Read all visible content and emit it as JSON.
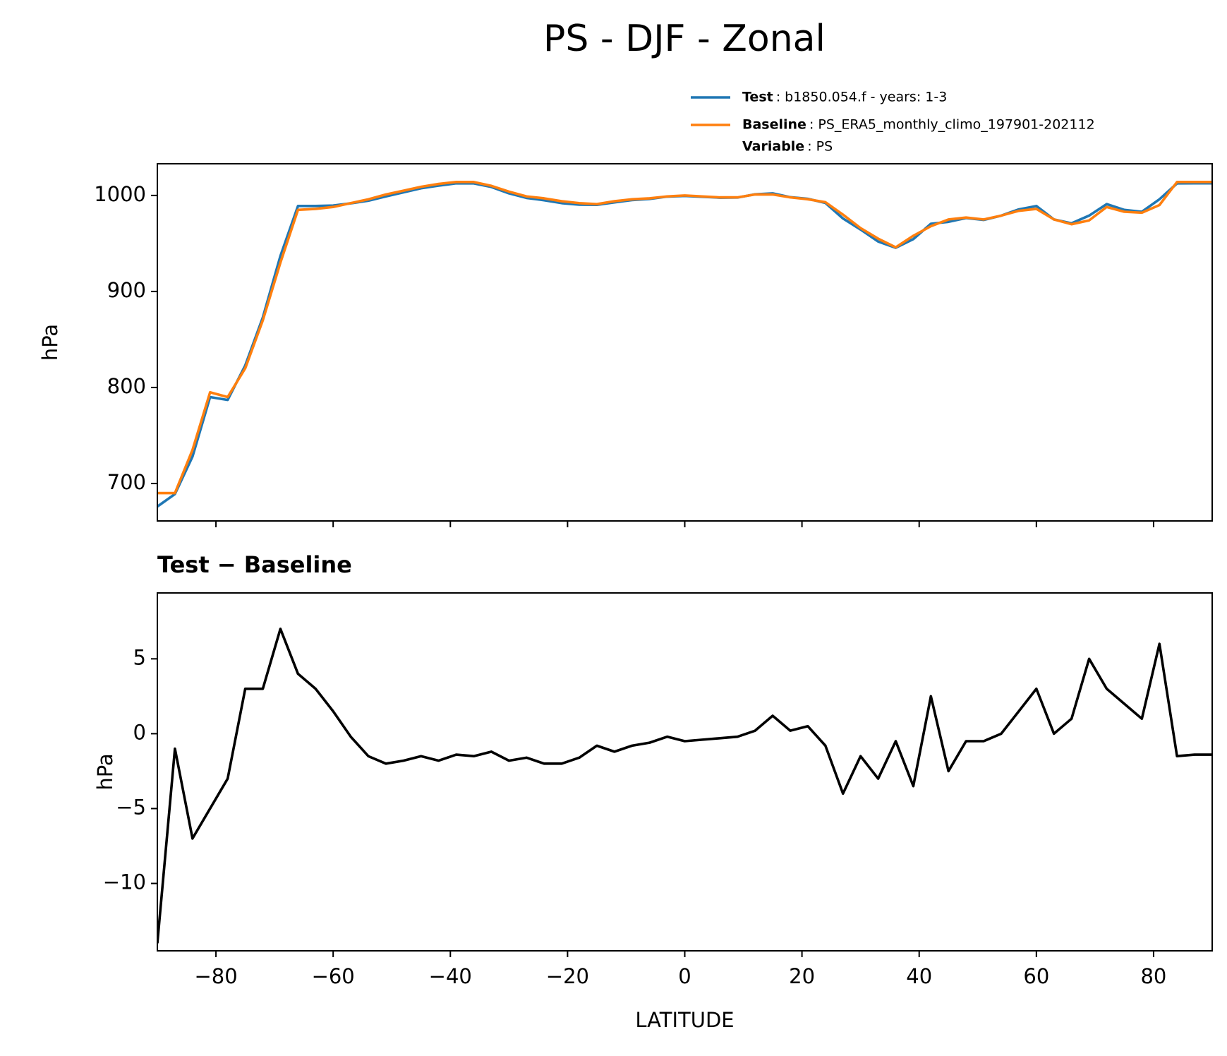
{
  "title": "PS - DJF - Zonal",
  "chart_data": [
    {
      "type": "line",
      "x": [
        -90,
        -87,
        -84,
        -81,
        -78,
        -75,
        -72,
        -69,
        -66,
        -63,
        -60,
        -57,
        -54,
        -51,
        -48,
        -45,
        -42,
        -39,
        -36,
        -33,
        -30,
        -27,
        -24,
        -21,
        -18,
        -15,
        -12,
        -9,
        -6,
        -3,
        0,
        3,
        6,
        9,
        12,
        15,
        18,
        21,
        24,
        27,
        30,
        33,
        36,
        39,
        42,
        45,
        48,
        51,
        54,
        57,
        60,
        63,
        66,
        69,
        72,
        75,
        78,
        81,
        84,
        87,
        90
      ],
      "series": [
        {
          "name": "Test",
          "description": ": b1850.054.f - years: 1-3",
          "color": "#1f77b4",
          "values": [
            676,
            689,
            728,
            790,
            787,
            823,
            873,
            937,
            989,
            989,
            989.5,
            991.8,
            994.5,
            999,
            1003.2,
            1007.5,
            1010.2,
            1012.6,
            1012.5,
            1008.8,
            1002.2,
            997.4,
            995,
            992,
            990.4,
            990.2,
            992.8,
            995.2,
            996.4,
            998.8,
            999.5,
            998.6,
            997.7,
            997.8,
            1001.2,
            1002.2,
            998.2,
            996.5,
            992.2,
            976,
            964.5,
            952,
            945.5,
            954.5,
            970.5,
            972.5,
            976.5,
            974.5,
            979,
            985.5,
            989,
            975,
            971,
            979,
            991,
            985,
            983,
            996,
            1012.5,
            1012.6,
            1012.6
          ]
        },
        {
          "name": "Baseline",
          "description": ": PS_ERA5_monthly_climo_197901-202112",
          "color": "#ff7f0e",
          "values": [
            690,
            690,
            735,
            795,
            790,
            820,
            870,
            930,
            985,
            986,
            988,
            992,
            996,
            1001,
            1005,
            1009,
            1012,
            1014,
            1014,
            1010,
            1004,
            999,
            997,
            994,
            992,
            991,
            994,
            996,
            997,
            999,
            1000,
            999,
            998,
            998,
            1001,
            1001,
            998,
            996,
            993,
            980,
            966,
            955,
            946,
            958,
            968,
            975,
            977,
            975,
            979,
            984,
            986,
            975,
            970,
            974,
            988,
            983,
            982,
            990,
            1014,
            1014,
            1014
          ]
        }
      ],
      "legend_extra": {
        "name": "Variable",
        "description": ": PS"
      },
      "ylabel": "hPa",
      "xlim": [
        -90,
        90
      ],
      "xticks": [
        -80,
        -60,
        -40,
        -20,
        0,
        20,
        40,
        60,
        80
      ],
      "xticklabels": false,
      "ylim": [
        661,
        1033
      ],
      "yticks": [
        700,
        800,
        900,
        1000
      ]
    },
    {
      "type": "line",
      "title": "Test − Baseline",
      "x": [
        -90,
        -87,
        -84,
        -81,
        -78,
        -75,
        -72,
        -69,
        -66,
        -63,
        -60,
        -57,
        -54,
        -51,
        -48,
        -45,
        -42,
        -39,
        -36,
        -33,
        -30,
        -27,
        -24,
        -21,
        -18,
        -15,
        -12,
        -9,
        -6,
        -3,
        0,
        3,
        6,
        9,
        12,
        15,
        18,
        21,
        24,
        27,
        30,
        33,
        36,
        39,
        42,
        45,
        48,
        51,
        54,
        57,
        60,
        63,
        66,
        69,
        72,
        75,
        78,
        81,
        84,
        87,
        90
      ],
      "series": [
        {
          "color": "#000000",
          "values": [
            -14,
            -1,
            -7,
            -5,
            -3,
            3,
            3,
            7,
            4,
            3,
            1.5,
            -0.2,
            -1.5,
            -2,
            -1.8,
            -1.5,
            -1.8,
            -1.4,
            -1.5,
            -1.2,
            -1.8,
            -1.6,
            -2,
            -2,
            -1.6,
            -0.8,
            -1.2,
            -0.8,
            -0.6,
            -0.2,
            -0.5,
            -0.4,
            -0.3,
            -0.2,
            0.2,
            1.2,
            0.2,
            0.5,
            -0.8,
            -4,
            -1.5,
            -3,
            -0.5,
            -3.5,
            2.5,
            -2.5,
            -0.5,
            -0.5,
            0,
            1.5,
            3,
            0,
            1,
            5,
            3,
            2,
            1,
            6,
            -1.5,
            -1.4,
            -1.4
          ]
        }
      ],
      "ylabel": "hPa",
      "xlabel": "LATITUDE",
      "xlim": [
        -90,
        90
      ],
      "xticks": [
        {
          "value": -80,
          "label": "−80"
        },
        {
          "value": -60,
          "label": "−60"
        },
        {
          "value": -40,
          "label": "−40"
        },
        {
          "value": -20,
          "label": "−20"
        },
        0,
        20,
        40,
        60,
        80
      ],
      "xticklabels": true,
      "ylim": [
        -14.5,
        9.4
      ],
      "yticks": [
        {
          "value": -10,
          "label": "−10"
        },
        {
          "value": -5,
          "label": "−5"
        },
        0,
        5
      ]
    }
  ]
}
